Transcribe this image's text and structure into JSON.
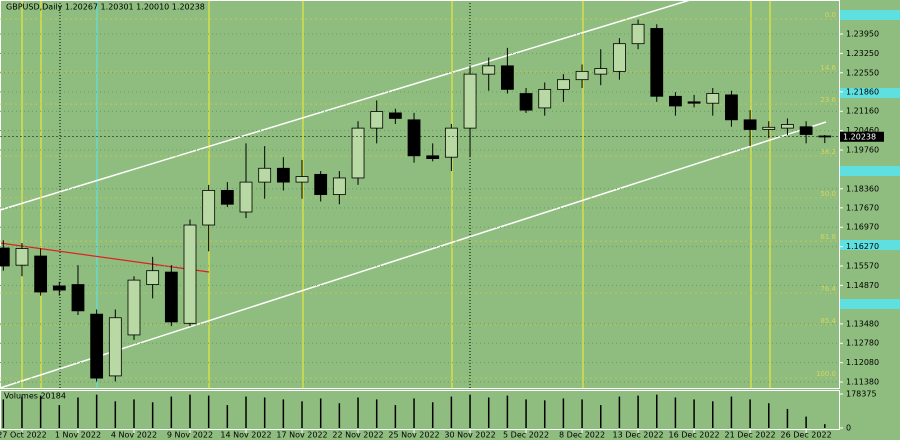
{
  "chart_data": {
    "type": "candlestick",
    "title": "GBPUSD,Daily  1.20267 1.20301 1.20010 1.20238",
    "background": "#8fbd7f",
    "up_color": "#b9d9a4",
    "down_color": "#000000",
    "categories": [
      null,
      "27 Oct 2022",
      null,
      null,
      "1 Nov 2022",
      null,
      null,
      "4 Nov 2022",
      null,
      null,
      "9 Nov 2022",
      null,
      null,
      "14 Nov 2022",
      null,
      null,
      "17 Nov 2022",
      null,
      null,
      "22 Nov 2022",
      null,
      null,
      "25 Nov 2022",
      null,
      null,
      "30 Nov 2022",
      null,
      null,
      "5 Dec 2022",
      null,
      null,
      "8 Dec 2022",
      null,
      null,
      "13 Dec 2022",
      null,
      null,
      "16 Dec 2022",
      null,
      null,
      "21 Dec 2022",
      null,
      null,
      "26 Dec 2022",
      null
    ],
    "open": [
      1.1622,
      1.156,
      1.1593,
      1.1485,
      1.149,
      1.1383,
      1.116,
      1.1308,
      1.149,
      1.1535,
      1.135,
      1.1705,
      1.183,
      1.1752,
      1.186,
      1.191,
      1.186,
      1.1888,
      1.1815,
      1.1875,
      1.2055,
      1.211,
      1.2085,
      1.1955,
      1.195,
      1.2055,
      1.225,
      1.228,
      1.218,
      1.2128,
      1.2195,
      1.223,
      1.225,
      1.226,
      1.236,
      1.2415,
      1.217,
      1.215,
      1.2145,
      1.2175,
      1.2085,
      1.205,
      1.2055,
      1.206,
      1.20267
    ],
    "high": [
      1.165,
      1.164,
      1.162,
      1.15,
      1.156,
      1.14,
      1.14,
      1.152,
      1.159,
      1.156,
      1.1725,
      1.185,
      1.186,
      1.2,
      1.199,
      1.195,
      1.194,
      1.19,
      1.19,
      1.208,
      1.2155,
      1.2125,
      1.211,
      1.2,
      1.207,
      1.228,
      1.231,
      1.2345,
      1.22,
      1.222,
      1.225,
      1.2285,
      1.234,
      1.238,
      1.2447,
      1.243,
      1.2185,
      1.2175,
      1.22,
      1.219,
      1.212,
      1.208,
      1.209,
      1.208,
      1.20301
    ],
    "low": [
      1.154,
      1.152,
      1.145,
      1.145,
      1.138,
      1.114,
      1.114,
      1.129,
      1.144,
      1.134,
      1.134,
      1.161,
      1.177,
      1.173,
      1.18,
      1.183,
      1.18,
      1.179,
      1.178,
      1.185,
      1.2,
      1.207,
      1.193,
      1.1935,
      1.19,
      1.195,
      1.219,
      1.218,
      1.211,
      1.21,
      1.215,
      1.22,
      1.221,
      1.223,
      1.234,
      1.215,
      1.21,
      1.213,
      1.21,
      1.206,
      1.199,
      1.202,
      1.203,
      1.2,
      1.2001
    ],
    "close": [
      1.1557,
      1.162,
      1.1463,
      1.147,
      1.1395,
      1.1152,
      1.137,
      1.1506,
      1.154,
      1.1355,
      1.1705,
      1.183,
      1.178,
      1.186,
      1.191,
      1.186,
      1.188,
      1.1815,
      1.1875,
      1.2055,
      1.2115,
      1.209,
      1.1955,
      1.1945,
      1.2055,
      1.225,
      1.228,
      1.2195,
      1.212,
      1.2195,
      1.223,
      1.226,
      1.227,
      1.236,
      1.243,
      1.217,
      1.2135,
      1.2145,
      1.218,
      1.2085,
      1.205,
      1.2058,
      1.2068,
      1.2032,
      1.20238
    ],
    "ylim": [
      1.11163,
      1.25178
    ],
    "yticks": [
      {
        "value": 1.2395,
        "label": "1.23950"
      },
      {
        "value": 1.2325,
        "label": "1.23250"
      },
      {
        "value": 1.2255,
        "label": "1.22550"
      },
      {
        "value": 1.2186,
        "label": "1.21860"
      },
      {
        "value": 1.2116,
        "label": "1.21160"
      },
      {
        "value": 1.2046,
        "label": "1.20460"
      },
      {
        "value": 1.1976,
        "label": "1.19760"
      },
      {
        "value": 1.1836,
        "label": "1.18360"
      },
      {
        "value": 1.1767,
        "label": "1.17670"
      },
      {
        "value": 1.1697,
        "label": "1.16970"
      },
      {
        "value": 1.1627,
        "label": "1.16270"
      },
      {
        "value": 1.1557,
        "label": "1.15570"
      },
      {
        "value": 1.1487,
        "label": "1.14870"
      },
      {
        "value": 1.1348,
        "label": "1.13480"
      },
      {
        "value": 1.1278,
        "label": "1.12780"
      },
      {
        "value": 1.1208,
        "label": "1.12080"
      },
      {
        "value": 1.1138,
        "label": "1.11380"
      }
    ],
    "price_marker": {
      "value": 1.20238,
      "label": "1.20238"
    },
    "fib_levels": [
      {
        "value": 1.2449,
        "label": "0.0"
      },
      {
        "value": 1.2258,
        "label": "14.6"
      },
      {
        "value": 1.2142,
        "label": "23.6"
      },
      {
        "value": 1.1954,
        "label": "38.2"
      },
      {
        "value": 1.1803,
        "label": "50.0"
      },
      {
        "value": 1.1647,
        "label": "61.8"
      },
      {
        "value": 1.1459,
        "label": "76.4"
      },
      {
        "value": 1.1344,
        "label": "85.4"
      },
      {
        "value": 1.1152,
        "label": "100.0"
      }
    ],
    "volumes": {
      "label": "Volumes 20184",
      "values": [
        150000,
        165000,
        170000,
        120000,
        160000,
        175000,
        140000,
        150000,
        135000,
        165000,
        175000,
        170000,
        120000,
        165000,
        160000,
        150000,
        140000,
        155000,
        130000,
        160000,
        150000,
        120000,
        155000,
        135000,
        165000,
        175000,
        160000,
        170000,
        150000,
        145000,
        155000,
        150000,
        120000,
        165000,
        170000,
        175000,
        160000,
        150000,
        140000,
        165000,
        150000,
        130000,
        100000,
        60000,
        20184
      ],
      "ylim": [
        0,
        178375
      ],
      "yticks": [
        178375,
        0
      ]
    }
  }
}
